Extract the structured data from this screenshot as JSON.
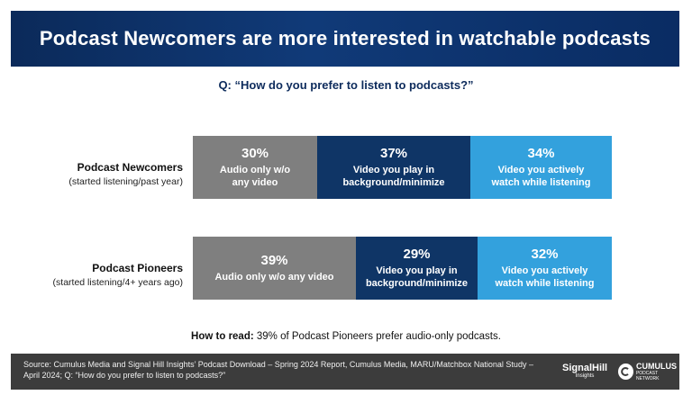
{
  "title": "Podcast Newcomers are more interested in watchable podcasts",
  "question": "Q: “How do you prefer to listen to podcasts?”",
  "colors": {
    "audio_only": "#7f7f7f",
    "background_video": "#0f3566",
    "active_video": "#33a1dd",
    "banner": "#0b2a5a",
    "footer": "#3c3c3c"
  },
  "chart_data": {
    "type": "bar",
    "orientation": "horizontal",
    "stacked": true,
    "categories": [
      "Podcast Newcomers",
      "Podcast Pioneers"
    ],
    "category_subtitles": [
      "(started listening/past year)",
      "(started listening/4+ years ago)"
    ],
    "series": [
      {
        "name": "Audio only w/o any video",
        "values": [
          30,
          39
        ]
      },
      {
        "name": "Video you play in background/minimize",
        "values": [
          37,
          29
        ]
      },
      {
        "name": "Video you actively watch while listening",
        "values": [
          34,
          32
        ]
      }
    ],
    "value_labels": [
      [
        "30%",
        "37%",
        "34%"
      ],
      [
        "39%",
        "29%",
        "32%"
      ]
    ],
    "segment_labels": [
      [
        "Audio only w/o\nany video",
        "Video you play in\nbackground/minimize",
        "Video you actively\nwatch while listening"
      ],
      [
        "Audio only w/o any video",
        "Video you play in\nbackground/minimize",
        "Video you actively\nwatch while listening"
      ]
    ]
  },
  "how_to_read": {
    "lead": "How to read:",
    "text": " 39% of Podcast Pioneers prefer audio-only podcasts."
  },
  "footer": {
    "source": "Source: Cumulus Media and Signal Hill Insights’ Podcast Download – Spring 2024 Report, Cumulus Media, MARU/Matchbox National Study – April 2024; Q: “How do you prefer to listen to podcasts?”",
    "logo1_name": "SignalHill",
    "logo1_tag": "Insights",
    "logo2_name": "CUMULUS",
    "logo2_tag": "PODCAST NETWORK"
  }
}
